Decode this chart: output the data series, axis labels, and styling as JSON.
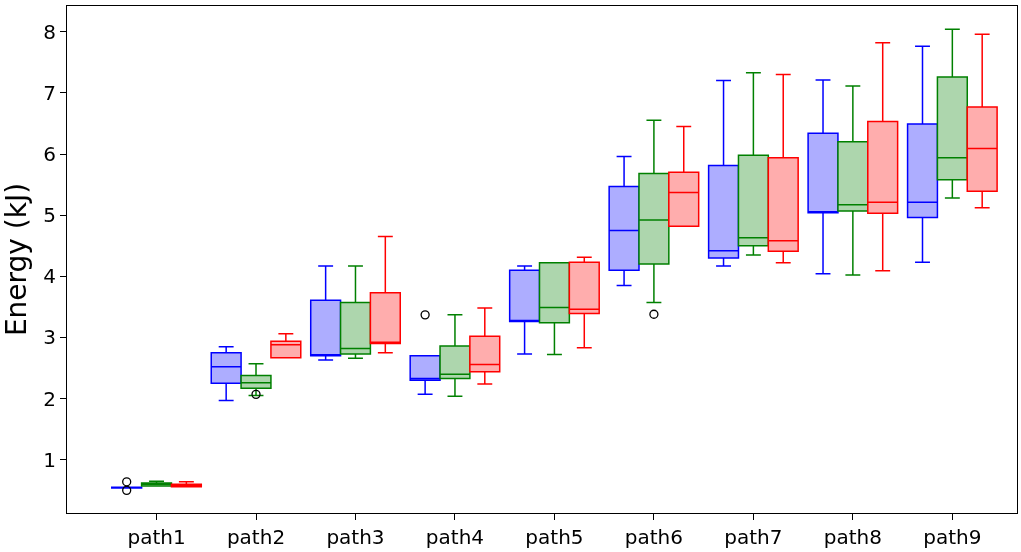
{
  "chart_data": {
    "type": "box",
    "ylabel": "Energy (kJ)",
    "categories": [
      "path1",
      "path2",
      "path3",
      "path4",
      "path5",
      "path6",
      "path7",
      "path8",
      "path9"
    ],
    "ylim": [
      0.13,
      8.42
    ],
    "yticks": [
      1,
      2,
      3,
      4,
      5,
      6,
      7,
      8
    ],
    "series": [
      {
        "color": "#0000ff",
        "boxes": [
          {
            "low": 0.54,
            "q1": 0.54,
            "median": 0.55,
            "q3": 0.55,
            "high": 0.55,
            "outliers": [
              0.64,
              0.5
            ]
          },
          {
            "low": 1.97,
            "q1": 2.25,
            "median": 2.52,
            "q3": 2.75,
            "high": 2.85
          },
          {
            "low": 2.63,
            "q1": 2.7,
            "median": 2.71,
            "q3": 3.61,
            "high": 4.17
          },
          {
            "low": 2.07,
            "q1": 2.3,
            "median": 2.33,
            "q3": 2.7,
            "high": 2.7,
            "outliers": [
              3.37
            ]
          },
          {
            "low": 2.73,
            "q1": 3.26,
            "median": 3.27,
            "q3": 4.1,
            "high": 4.17
          },
          {
            "low": 3.85,
            "q1": 4.1,
            "median": 4.75,
            "q3": 5.47,
            "high": 5.96
          },
          {
            "low": 4.17,
            "q1": 4.3,
            "median": 4.42,
            "q3": 5.81,
            "high": 7.2
          },
          {
            "low": 4.04,
            "q1": 5.04,
            "median": 5.05,
            "q3": 6.34,
            "high": 7.21
          },
          {
            "low": 4.23,
            "q1": 4.96,
            "median": 5.21,
            "q3": 6.49,
            "high": 7.76
          }
        ]
      },
      {
        "color": "#008000",
        "boxes": [
          {
            "low": 0.57,
            "q1": 0.57,
            "median": 0.6,
            "q3": 0.62,
            "high": 0.65
          },
          {
            "low": 2.05,
            "q1": 2.17,
            "median": 2.26,
            "q3": 2.38,
            "high": 2.57,
            "outliers": [
              2.07
            ]
          },
          {
            "low": 2.66,
            "q1": 2.73,
            "median": 2.82,
            "q3": 3.57,
            "high": 4.17
          },
          {
            "low": 2.04,
            "q1": 2.33,
            "median": 2.4,
            "q3": 2.86,
            "high": 3.37
          },
          {
            "low": 2.72,
            "q1": 3.24,
            "median": 3.49,
            "q3": 4.22,
            "high": 4.22
          },
          {
            "low": 3.57,
            "q1": 4.2,
            "median": 4.92,
            "q3": 5.68,
            "high": 6.55,
            "outliers": [
              3.38
            ]
          },
          {
            "low": 4.35,
            "q1": 4.5,
            "median": 4.63,
            "q3": 5.98,
            "high": 7.33
          },
          {
            "low": 4.02,
            "q1": 5.07,
            "median": 5.17,
            "q3": 6.2,
            "high": 7.11
          },
          {
            "low": 5.28,
            "q1": 5.58,
            "median": 5.94,
            "q3": 7.26,
            "high": 8.04
          }
        ]
      },
      {
        "color": "#ff0000",
        "boxes": [
          {
            "low": 0.56,
            "q1": 0.56,
            "median": 0.58,
            "q3": 0.6,
            "high": 0.64
          },
          {
            "low": 2.67,
            "q1": 2.67,
            "median": 2.88,
            "q3": 2.94,
            "high": 3.06
          },
          {
            "low": 2.75,
            "q1": 2.9,
            "median": 2.92,
            "q3": 3.73,
            "high": 4.65
          },
          {
            "low": 2.24,
            "q1": 2.44,
            "median": 2.56,
            "q3": 3.02,
            "high": 3.48
          },
          {
            "low": 2.83,
            "q1": 3.39,
            "median": 3.46,
            "q3": 4.23,
            "high": 4.31
          },
          {
            "low": 4.82,
            "q1": 4.82,
            "median": 5.37,
            "q3": 5.7,
            "high": 6.45
          },
          {
            "low": 4.22,
            "q1": 4.41,
            "median": 4.58,
            "q3": 5.94,
            "high": 7.3
          },
          {
            "low": 4.09,
            "q1": 5.03,
            "median": 5.21,
            "q3": 6.53,
            "high": 7.82
          },
          {
            "low": 5.12,
            "q1": 5.39,
            "median": 6.09,
            "q3": 6.77,
            "high": 7.96
          }
        ]
      }
    ]
  }
}
